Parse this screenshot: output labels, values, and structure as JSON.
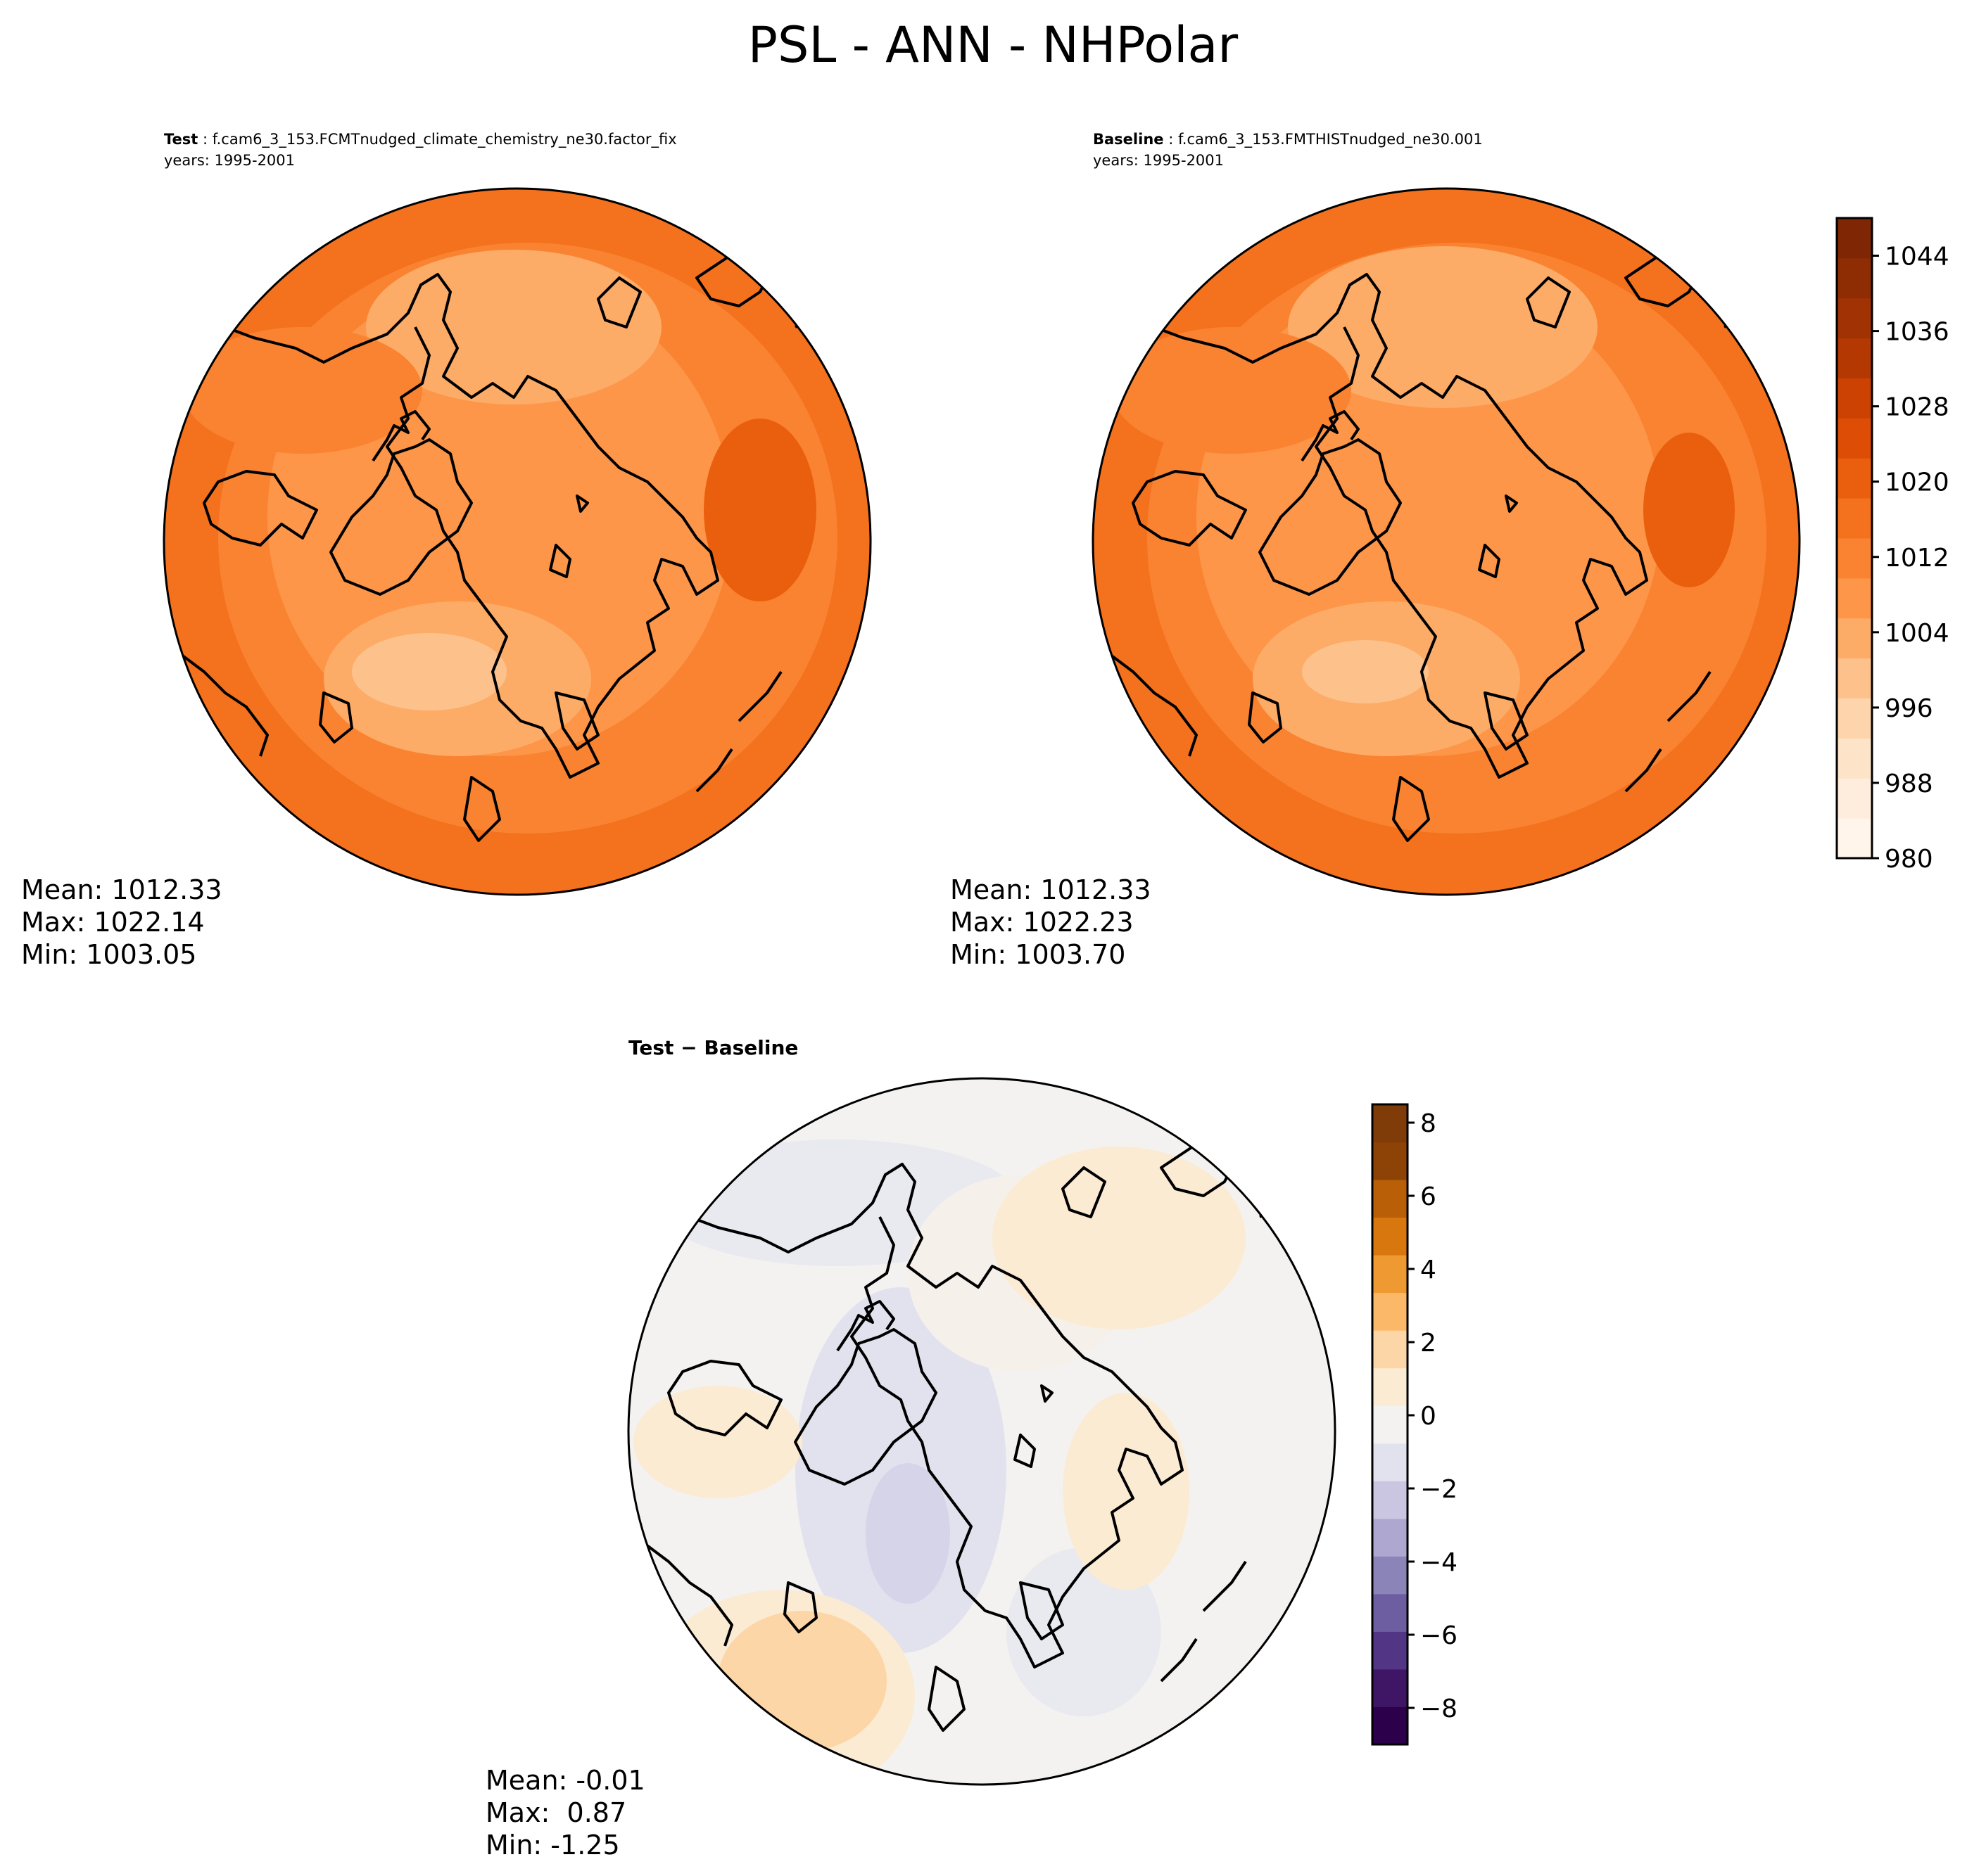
{
  "figure_title": "PSL - ANN - NHPolar",
  "panels": {
    "test": {
      "title_bold": "Test",
      "title_rest": " : f.cam6_3_153.FCMTnudged_climate_chemistry_ne30.factor_fix",
      "subtitle": "years: 1995-2001",
      "mean": "Mean: 1012.33",
      "max": "Max: 1022.14",
      "min": "Min: 1003.05"
    },
    "baseline": {
      "title_bold": "Baseline",
      "title_rest": " : f.cam6_3_153.FMTHISTnudged_ne30.001",
      "subtitle": "years: 1995-2001",
      "mean": "Mean: 1012.33",
      "max": "Max: 1022.23",
      "min": "Min: 1003.70"
    },
    "diff": {
      "title": "Test − Baseline",
      "mean": "Mean: -0.01",
      "max": "Max:  0.87",
      "min": "Min: -1.25"
    }
  },
  "colorbars": {
    "main": {
      "cmap": "Oranges",
      "range": [
        980,
        1048
      ],
      "levels": 17,
      "ticks": [
        "980",
        "988",
        "996",
        "1004",
        "1012",
        "1020",
        "1028",
        "1036",
        "1044"
      ],
      "colors": [
        "#fff5eb",
        "#feeddc",
        "#fde3c8",
        "#fdd4ab",
        "#fdc28c",
        "#fdac67",
        "#fd9649",
        "#fa8331",
        "#f4711e",
        "#ea5f0e",
        "#dd4d06",
        "#cc4203",
        "#b33802",
        "#a03203",
        "#8e2d04",
        "#7f2704"
      ]
    },
    "diff": {
      "cmap": "PuOr_r",
      "range": [
        -9,
        8.5
      ],
      "ticks": [
        "−8",
        "−6",
        "−4",
        "−2",
        "0",
        "2",
        "4",
        "6",
        "8"
      ],
      "colors": [
        "#2d004b",
        "#3f1566",
        "#533586",
        "#6c5ea0",
        "#8b84b9",
        "#aea8d1",
        "#cac6e2",
        "#e2e2ef",
        "#f3f2f0",
        "#fcebd3",
        "#fdd6a8",
        "#fbb869",
        "#ef9933",
        "#d8770d",
        "#b85f07",
        "#8e4306",
        "#7f3b08"
      ]
    }
  }
}
